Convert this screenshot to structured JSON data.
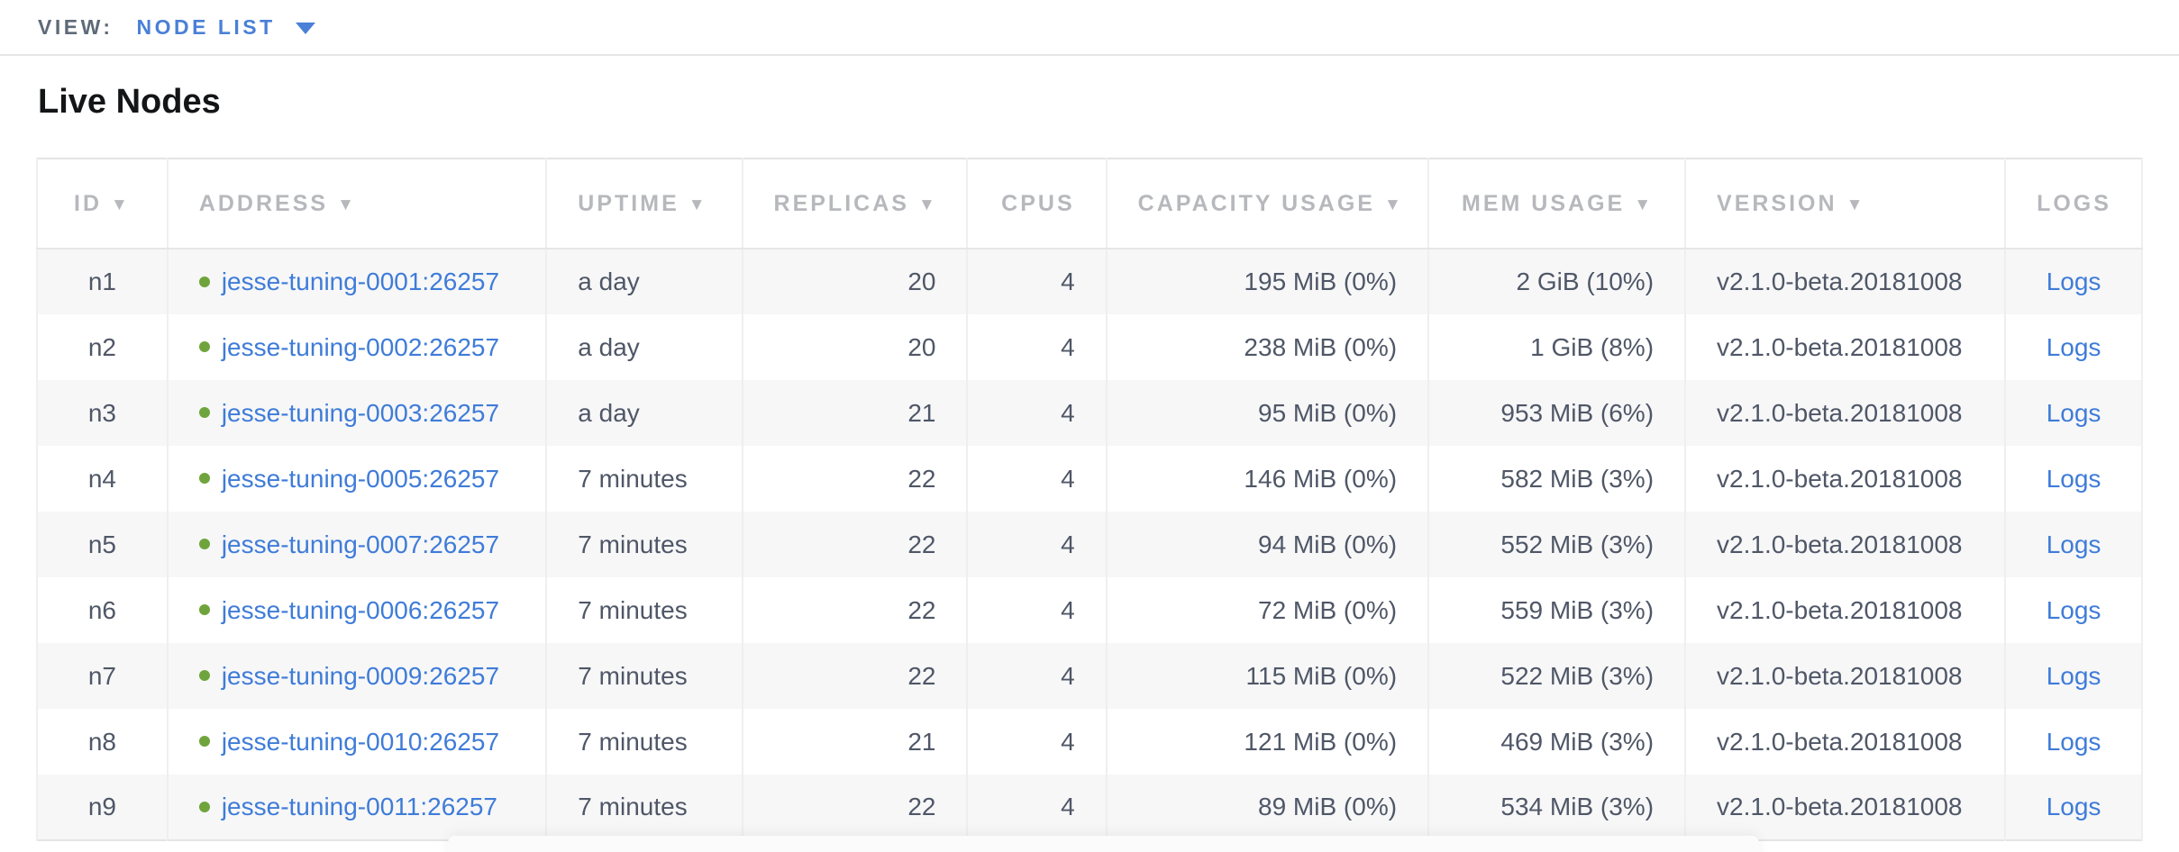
{
  "view_bar": {
    "label": "VIEW:",
    "selected_view": "NODE LIST"
  },
  "page": {
    "title": "Live Nodes"
  },
  "table": {
    "columns": [
      {
        "key": "id",
        "label": "ID",
        "sortable": true,
        "align": "ac"
      },
      {
        "key": "address",
        "label": "Address",
        "sortable": true,
        "align": "al"
      },
      {
        "key": "uptime",
        "label": "Uptime",
        "sortable": true,
        "align": "al"
      },
      {
        "key": "replicas",
        "label": "Replicas",
        "sortable": true,
        "align": "ar"
      },
      {
        "key": "cpus",
        "label": "CPUs",
        "sortable": false,
        "align": "ar"
      },
      {
        "key": "capacity",
        "label": "Capacity Usage",
        "sortable": true,
        "align": "ar"
      },
      {
        "key": "mem",
        "label": "Mem Usage",
        "sortable": true,
        "align": "ar"
      },
      {
        "key": "version",
        "label": "Version",
        "sortable": true,
        "align": "al"
      },
      {
        "key": "logs",
        "label": "Logs",
        "sortable": false,
        "align": "ac"
      }
    ],
    "sort_arrow_glyph": "▼",
    "rows": [
      {
        "id": "n1",
        "status": "healthy",
        "address": "jesse-tuning-0001:26257",
        "uptime": "a day",
        "replicas": "20",
        "cpus": "4",
        "capacity": "195 MiB (0%)",
        "mem": "2 GiB (10%)",
        "version": "v2.1.0-beta.20181008",
        "logs": "Logs"
      },
      {
        "id": "n2",
        "status": "healthy",
        "address": "jesse-tuning-0002:26257",
        "uptime": "a day",
        "replicas": "20",
        "cpus": "4",
        "capacity": "238 MiB (0%)",
        "mem": "1 GiB (8%)",
        "version": "v2.1.0-beta.20181008",
        "logs": "Logs"
      },
      {
        "id": "n3",
        "status": "healthy",
        "address": "jesse-tuning-0003:26257",
        "uptime": "a day",
        "replicas": "21",
        "cpus": "4",
        "capacity": "95 MiB (0%)",
        "mem": "953 MiB (6%)",
        "version": "v2.1.0-beta.20181008",
        "logs": "Logs"
      },
      {
        "id": "n4",
        "status": "healthy",
        "address": "jesse-tuning-0005:26257",
        "uptime": "7 minutes",
        "replicas": "22",
        "cpus": "4",
        "capacity": "146 MiB (0%)",
        "mem": "582 MiB (3%)",
        "version": "v2.1.0-beta.20181008",
        "logs": "Logs"
      },
      {
        "id": "n5",
        "status": "healthy",
        "address": "jesse-tuning-0007:26257",
        "uptime": "7 minutes",
        "replicas": "22",
        "cpus": "4",
        "capacity": "94 MiB (0%)",
        "mem": "552 MiB (3%)",
        "version": "v2.1.0-beta.20181008",
        "logs": "Logs"
      },
      {
        "id": "n6",
        "status": "healthy",
        "address": "jesse-tuning-0006:26257",
        "uptime": "7 minutes",
        "replicas": "22",
        "cpus": "4",
        "capacity": "72 MiB (0%)",
        "mem": "559 MiB (3%)",
        "version": "v2.1.0-beta.20181008",
        "logs": "Logs"
      },
      {
        "id": "n7",
        "status": "healthy",
        "address": "jesse-tuning-0009:26257",
        "uptime": "7 minutes",
        "replicas": "22",
        "cpus": "4",
        "capacity": "115 MiB (0%)",
        "mem": "522 MiB (3%)",
        "version": "v2.1.0-beta.20181008",
        "logs": "Logs"
      },
      {
        "id": "n8",
        "status": "healthy",
        "address": "jesse-tuning-0010:26257",
        "uptime": "7 minutes",
        "replicas": "21",
        "cpus": "4",
        "capacity": "121 MiB (0%)",
        "mem": "469 MiB (3%)",
        "version": "v2.1.0-beta.20181008",
        "logs": "Logs"
      },
      {
        "id": "n9",
        "status": "healthy",
        "address": "jesse-tuning-0011:26257",
        "uptime": "7 minutes",
        "replicas": "22",
        "cpus": "4",
        "capacity": "89 MiB (0%)",
        "mem": "534 MiB (3%)",
        "version": "v2.1.0-beta.20181008",
        "logs": "Logs"
      }
    ]
  },
  "colors": {
    "link_blue": "#3f7cd8",
    "accent_blue": "#4a80d7",
    "healthy_green": "#6fa43c",
    "header_gray": "#b6b8bc",
    "body_text": "#4f5767",
    "stripe": "#f7f7f8"
  }
}
